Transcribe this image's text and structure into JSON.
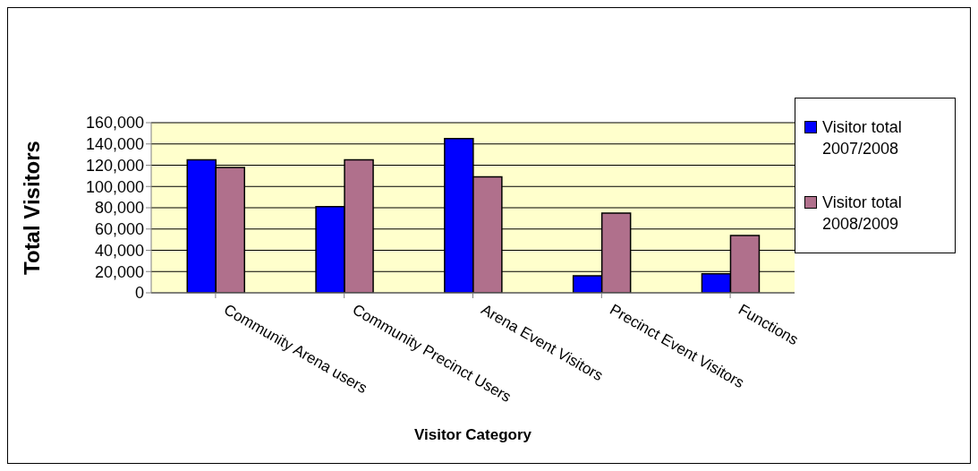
{
  "chart_data": {
    "type": "bar",
    "xlabel": "Visitor Category",
    "ylabel": "Total Visitors",
    "categories": [
      "Community Arena users",
      "Community Precinct Users",
      "Arena Event Visitors",
      "Precinct Event Visitors",
      "Functions"
    ],
    "series": [
      {
        "name": "Visitor total 2007/2008",
        "color": "#0000ff",
        "values": [
          125000,
          81000,
          145000,
          16000,
          18000
        ]
      },
      {
        "name": "Visitor total 2008/2009",
        "color": "#b0708c",
        "values": [
          118000,
          125000,
          109000,
          75000,
          54000
        ]
      }
    ],
    "ylim": [
      0,
      160000
    ],
    "yticks": [
      {
        "value": 0,
        "label": "0"
      },
      {
        "value": 20000,
        "label": "20,000"
      },
      {
        "value": 40000,
        "label": "40,000"
      },
      {
        "value": 60000,
        "label": "60,000"
      },
      {
        "value": 80000,
        "label": "80,000"
      },
      {
        "value": 100000,
        "label": "100,000"
      },
      {
        "value": 120000,
        "label": "120,000"
      },
      {
        "value": 140000,
        "label": "140,000"
      },
      {
        "value": 160000,
        "label": "160,000"
      }
    ],
    "grid": "y",
    "legend": "right"
  }
}
